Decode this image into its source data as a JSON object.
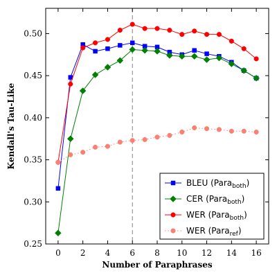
{
  "chart_data": {
    "type": "line",
    "xlabel": "Number of Paraphrases",
    "ylabel": "Kendall's Tau-Like",
    "x": [
      0,
      1,
      2,
      3,
      4,
      5,
      6,
      7,
      8,
      9,
      10,
      11,
      12,
      13,
      14,
      15,
      16
    ],
    "xlim": [
      -1,
      17
    ],
    "ylim": [
      0.25,
      0.53
    ],
    "xticks": [
      0,
      2,
      4,
      6,
      8,
      10,
      12,
      14,
      16
    ],
    "yticks": [
      0.25,
      0.3,
      0.35,
      0.4,
      0.45,
      0.5
    ],
    "ytick_labels": [
      "0.25",
      "0.30",
      "0.35",
      "0.40",
      "0.45",
      "0.50"
    ],
    "vline": {
      "x": 6,
      "style": "dashed",
      "color": "#808080"
    },
    "legend_position": "lower-right",
    "grid": false,
    "series": [
      {
        "name": "BLEU (Para",
        "sub": "both",
        "close": ")",
        "color": "#0000ff",
        "marker": "square",
        "line": "solid",
        "values": [
          0.316,
          0.448,
          0.487,
          0.479,
          0.482,
          0.486,
          0.489,
          0.485,
          0.484,
          0.478,
          0.475,
          0.48,
          0.476,
          0.473,
          0.466,
          0.456,
          0.447
        ]
      },
      {
        "name": "CER (Para",
        "sub": "both",
        "close": ")",
        "color": "#008000",
        "marker": "diamond",
        "line": "solid",
        "values": [
          0.263,
          0.375,
          0.432,
          0.451,
          0.46,
          0.468,
          0.481,
          0.48,
          0.479,
          0.474,
          0.473,
          0.473,
          0.469,
          0.471,
          0.464,
          0.456,
          0.447
        ]
      },
      {
        "name": "WER (Para",
        "sub": "both",
        "close": ")",
        "color": "#ff0000",
        "marker": "circle",
        "line": "solid",
        "values": [
          0.347,
          0.44,
          0.483,
          0.489,
          0.493,
          0.504,
          0.511,
          0.506,
          0.506,
          0.504,
          0.499,
          0.503,
          0.499,
          0.499,
          0.491,
          0.482,
          0.47
        ]
      },
      {
        "name": "WER (Para",
        "sub": "ref",
        "close": ")",
        "color": "#fa8072",
        "marker": "circle",
        "line": "dotted",
        "values": [
          0.347,
          0.356,
          0.359,
          0.365,
          0.366,
          0.371,
          0.373,
          0.374,
          0.377,
          0.379,
          0.383,
          0.388,
          0.387,
          0.386,
          0.384,
          0.384,
          0.383
        ]
      }
    ]
  }
}
